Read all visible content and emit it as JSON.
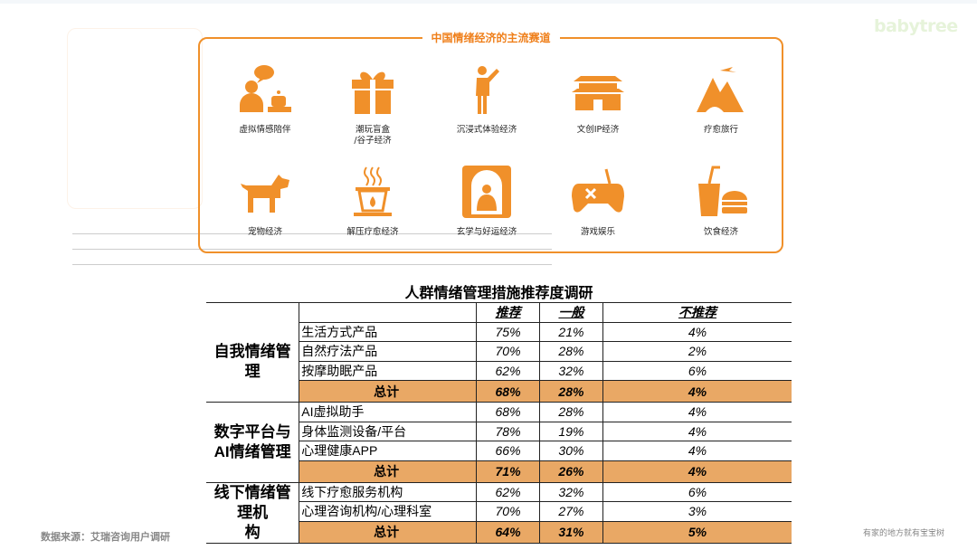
{
  "brand": {
    "logo_text": "babytree",
    "slogan": "有家的地方就有宝宝树"
  },
  "accent_color": "#f0902a",
  "total_row_color": "#e9a865",
  "card": {
    "title": "中国情绪经济的主流赛道",
    "items": [
      {
        "icon": "virtual-companion-icon",
        "label": "虚拟情感陪伴"
      },
      {
        "icon": "gift-box-icon",
        "label": "潮玩盲盒\n/谷子经济"
      },
      {
        "icon": "person-presenting-icon",
        "label": "沉浸式体验经济"
      },
      {
        "icon": "palace-icon",
        "label": "文创IP经济"
      },
      {
        "icon": "travel-landscape-icon",
        "label": "疗愈旅行"
      },
      {
        "icon": "dog-icon",
        "label": "宠物经济"
      },
      {
        "icon": "aroma-burner-icon",
        "label": "解压疗愈经济"
      },
      {
        "icon": "buddha-shrine-icon",
        "label": "玄学与好运经济"
      },
      {
        "icon": "gamepad-icon",
        "label": "游戏娱乐"
      },
      {
        "icon": "drink-burger-icon",
        "label": "饮食经济"
      }
    ]
  },
  "table": {
    "title": "人群情绪管理措施推荐度调研",
    "columns": [
      "推荐",
      "一般",
      "不推荐"
    ],
    "total_label": "总计",
    "groups": [
      {
        "name": "自我情绪管理",
        "rows": [
          {
            "item": "生活方式产品",
            "values": [
              "75%",
              "21%",
              "4%"
            ]
          },
          {
            "item": "自然疗法产品",
            "values": [
              "70%",
              "28%",
              "2%"
            ]
          },
          {
            "item": "按摩助眠产品",
            "values": [
              "62%",
              "32%",
              "6%"
            ]
          }
        ],
        "total": [
          "68%",
          "28%",
          "4%"
        ]
      },
      {
        "name": "数字平台与\nAI情绪管理",
        "rows": [
          {
            "item": "AI虚拟助手",
            "values": [
              "68%",
              "28%",
              "4%"
            ]
          },
          {
            "item": "身体监测设备/平台",
            "values": [
              "78%",
              "19%",
              "4%"
            ]
          },
          {
            "item": "心理健康APP",
            "values": [
              "66%",
              "30%",
              "4%"
            ]
          }
        ],
        "total": [
          "71%",
          "26%",
          "4%"
        ]
      },
      {
        "name": "线下情绪管理机\n构",
        "rows": [
          {
            "item": "线下疗愈服务机构",
            "values": [
              "62%",
              "32%",
              "6%"
            ]
          },
          {
            "item": "心理咨询机构/心理科室",
            "values": [
              "70%",
              "27%",
              "3%"
            ]
          }
        ],
        "total": [
          "64%",
          "31%",
          "5%"
        ]
      }
    ]
  },
  "footer": {
    "source": "数据来源：艾瑞咨询用户调研"
  }
}
